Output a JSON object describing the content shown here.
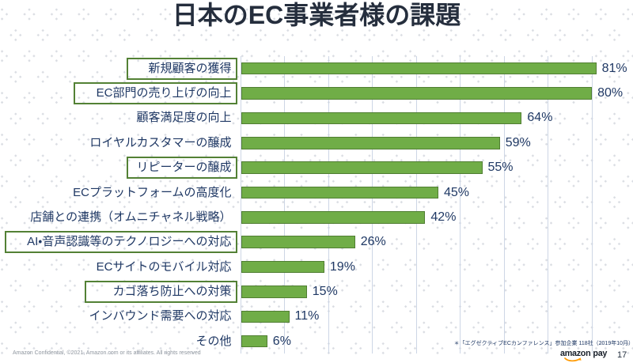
{
  "slide": {
    "title": "日本のEC事業者様の課題",
    "footnote": "＊「エグゼクティブECカンファレンス」参加企業 118社（2019年10月）",
    "footer_left": "Amazon Confidential, ©2021, Amazon.com or its affiliates. All rights reserved",
    "logo": {
      "amazon": "amazon",
      "pay": "pay"
    },
    "page_number": "17"
  },
  "colors": {
    "bar_fill": "#70ad47",
    "bar_border": "#507e32",
    "highlight_box_border": "#538135",
    "label_text": "#1f3864",
    "title_text": "#252e3d",
    "gridline": "#cdd6e5",
    "footer_text": "#8e959e",
    "smile_orange": "#ff9900",
    "background_dots": "#d9dce2"
  },
  "chart_data": {
    "type": "bar",
    "orientation": "horizontal",
    "title": "日本のEC事業者様の課題",
    "categories": [
      "新規顧客の獲得",
      "EC部門の売り上げの向上",
      "顧客満足度の向上",
      "ロイヤルカスタマーの醸成",
      "リピーターの醸成",
      "ECプラットフォームの高度化",
      "店舗との連携（オムニチャネル戦略）",
      "AI・音声認識等のテクノロジーへの対応",
      "ECサイトのモバイル対応",
      "カゴ落ち防止への対策",
      "インバウンド需要への対応",
      "その他"
    ],
    "values": [
      81,
      80,
      64,
      59,
      55,
      45,
      42,
      26,
      19,
      15,
      11,
      6
    ],
    "value_labels": [
      "81%",
      "80%",
      "64%",
      "59%",
      "55%",
      "45%",
      "42%",
      "26%",
      "19%",
      "15%",
      "11%",
      "6%"
    ],
    "highlighted": [
      true,
      true,
      false,
      false,
      true,
      false,
      false,
      true,
      false,
      true,
      false,
      false
    ],
    "unit": "%",
    "xlim": [
      0,
      90
    ],
    "gridline_step": 10,
    "grid": "vertical",
    "legend": "none",
    "xlabel": "",
    "ylabel": ""
  }
}
